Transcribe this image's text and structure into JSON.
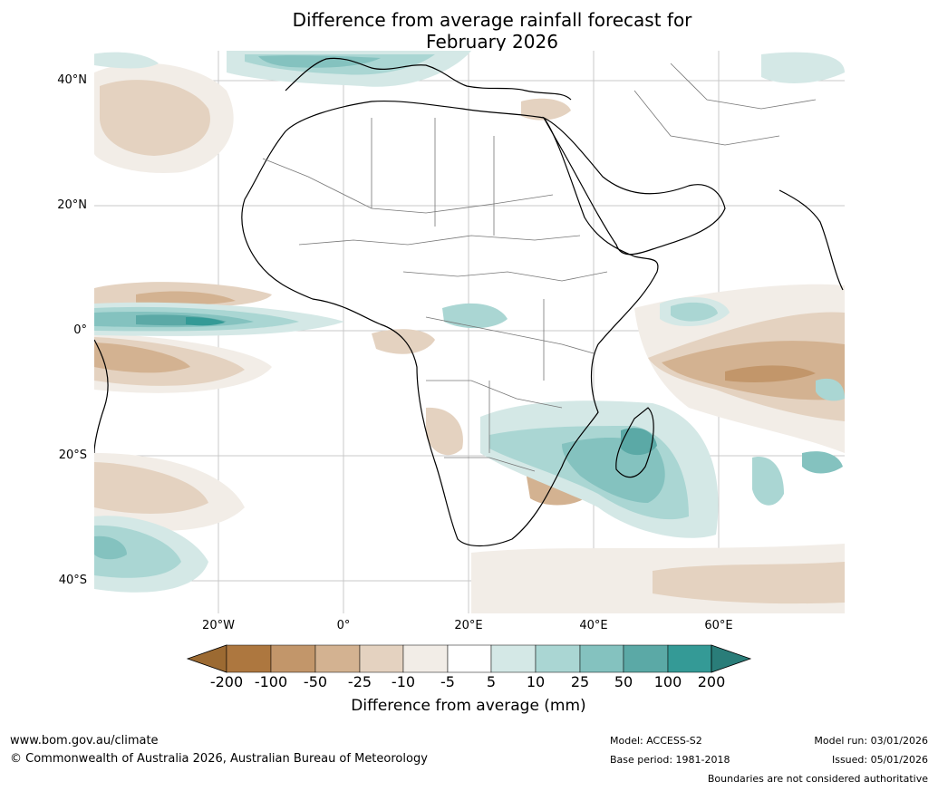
{
  "title_line1": "Difference from average rainfall forecast for",
  "title_line2": "February 2026",
  "map": {
    "lat_labels": [
      "40°N",
      "20°N",
      "0°",
      "20°S",
      "40°S"
    ],
    "lon_labels": [
      "20°W",
      "0°",
      "20°E",
      "40°E",
      "60°E"
    ]
  },
  "colorbar": {
    "title": "Difference from average (mm)",
    "ticks": [
      "-200",
      "-100",
      "-50",
      "-25",
      "-10",
      "-5",
      "5",
      "10",
      "25",
      "50",
      "100",
      "200"
    ],
    "colors": {
      "lt_-200": "#9c6a32",
      "-200_-100": "#ad773f",
      "-100_-50": "#c2966a",
      "-50_-25": "#d3b291",
      "-25_-10": "#e4d2c0",
      "-10_-5": "#f2ede7",
      "-5_5": "#ffffff",
      "5_10": "#d4e8e6",
      "10_25": "#aad6d3",
      "25_50": "#84c2bf",
      "50_100": "#5ba9a6",
      "100_200": "#349a96",
      "gt_200": "#2a7d79"
    }
  },
  "footer": {
    "website": "www.bom.gov.au/climate",
    "copyright": "© Commonwealth of Australia 2026, Australian Bureau of Meteorology",
    "model": "Model: ACCESS-S2",
    "base_period": "Base period: 1981-2018",
    "model_run": "Model run: 03/01/2026",
    "issued": "Issued: 05/01/2026",
    "disclaimer": "Boundaries are not considered authoritative"
  }
}
